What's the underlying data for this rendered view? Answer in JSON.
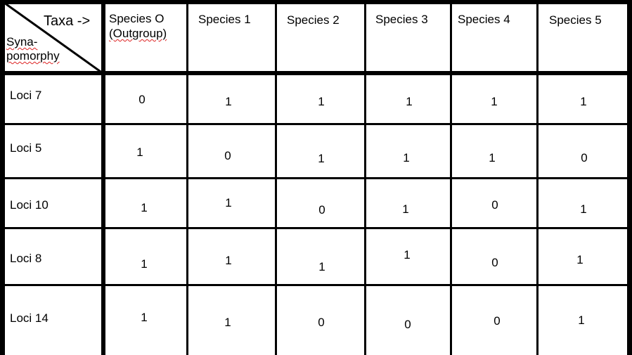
{
  "header": {
    "corner_top": "Taxa ->",
    "corner_bottom_1": "Syna-",
    "corner_bottom_2": "pomorphy",
    "species": [
      {
        "line1": "Species O",
        "line2": "(Outgroup)"
      },
      {
        "line1": "Species 1",
        "line2": ""
      },
      {
        "line1": "Species 2",
        "line2": ""
      },
      {
        "line1": "Species 3",
        "line2": ""
      },
      {
        "line1": "Species 4",
        "line2": ""
      },
      {
        "line1": "Species 5",
        "line2": ""
      }
    ]
  },
  "rows": [
    {
      "label": "Loci 7",
      "values": [
        "0",
        "1",
        "1",
        "1",
        "1",
        "1"
      ]
    },
    {
      "label": "Loci 5",
      "values": [
        "1",
        "0",
        "1",
        "1",
        "1",
        "0"
      ]
    },
    {
      "label": "Loci 10",
      "values": [
        "1",
        "1",
        "0",
        "1",
        "0",
        "1"
      ]
    },
    {
      "label": "Loci 8",
      "values": [
        "1",
        "1",
        "1",
        "1",
        "0",
        "1"
      ]
    },
    {
      "label": "Loci 14",
      "values": [
        "1",
        "1",
        "0",
        "0",
        "0",
        "1"
      ]
    }
  ],
  "colors": {
    "lines": "#000000",
    "spellcheck_underline": "#d22222"
  }
}
